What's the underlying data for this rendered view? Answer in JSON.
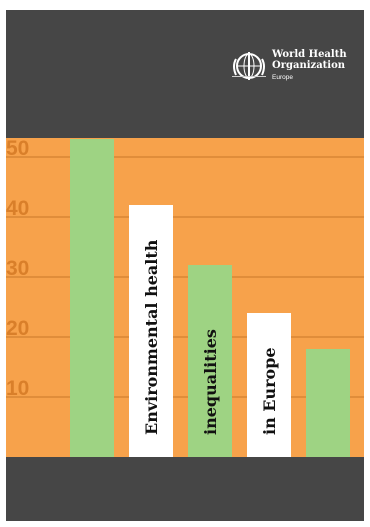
{
  "publisher": {
    "name_line1": "World Health",
    "name_line2": "Organization",
    "region": "Europe",
    "emblem_icon": "who-emblem-icon"
  },
  "cover_title": {
    "part1": "Environmental health",
    "part2": "inequalities",
    "part3": "in Europe"
  },
  "colors": {
    "dark": "#464646",
    "orange": "#f7a24b",
    "tick_orange": "#d97f2a",
    "bar_green": "#9ed383",
    "label_white": "#ffffff"
  },
  "chart_data": {
    "type": "bar",
    "categories": [
      "",
      "",
      "",
      "",
      ""
    ],
    "values": [
      53,
      42,
      32,
      24,
      18
    ],
    "title": "",
    "xlabel": "",
    "ylabel": "",
    "yticks": [
      10,
      20,
      30,
      40,
      50
    ],
    "ylim": [
      0,
      60
    ],
    "grid": true,
    "bar_colors": [
      "#9ed383",
      "#ffffff",
      "#9ed383",
      "#ffffff",
      "#9ed383"
    ]
  }
}
